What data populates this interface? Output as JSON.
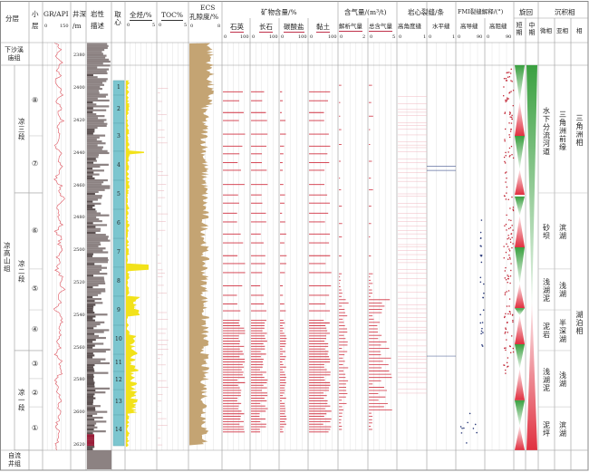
{
  "headers": {
    "fenceng": "分层",
    "xiaoceng": "小层",
    "gr": "GR/API",
    "gr_min": "0",
    "gr_max": "150",
    "depth": "井深",
    "depth_unit": "/m",
    "lith": "岩性",
    "lith2": "描述",
    "core": "取心",
    "tg": "全烃/%",
    "tg_min": "0",
    "tg_max": "5",
    "toc": "TOC%",
    "toc_min": "0",
    "toc_max": "5",
    "ecs": "ECS",
    "ecs2": "孔隙度/%",
    "ecs_min": "0",
    "ecs_max": "8",
    "mineral": "矿物含量/%",
    "quartz": "石英",
    "feldspar": "长石",
    "carbonate": "碳酸盐",
    "clay": "黏土",
    "m_min": "0",
    "m_max": "100",
    "gas": "含气量/(m³/t)",
    "desorbed": "解析气量",
    "desorbed_min": "0",
    "desorbed_max": "2",
    "total_gas": "总含气量",
    "total_min": "0",
    "total_max": "5",
    "core_frac": "岩心裂缝/条",
    "high_angle": "高角度缝",
    "ha_min": "0",
    "ha_max": "1",
    "horizontal": "水平缝",
    "hz_min": "0",
    "hz_max": "1",
    "fmi": "FMI裂缝解释/(°)",
    "conductive": "高导缝",
    "cd_min": "0",
    "cd_max": "90",
    "resistive": "高阻缝",
    "rs_min": "0",
    "rs_max": "90",
    "cycle": "旋回",
    "short": "短期",
    "medium": "中期",
    "facies": "沉积相",
    "microfacies": "微相",
    "subfacies": "亚相",
    "facies_col": "相"
  },
  "strat": {
    "formations": [
      {
        "name": "下沙溪庙组",
        "top": 2372.2,
        "bottom": 2385.6
      },
      {
        "name": "凉高山组",
        "top": 2385.6,
        "bottom": 2623
      },
      {
        "name": "自流井组",
        "top": 2623,
        "bottom": 2634.7
      }
    ],
    "members": [
      {
        "name": "凉三段",
        "top": 2385.6,
        "bottom": 2464.4
      },
      {
        "name": "凉二段",
        "top": 2464.4,
        "bottom": 2561.6
      },
      {
        "name": "凉一段",
        "top": 2561.6,
        "bottom": 2623
      }
    ],
    "layers": [
      {
        "name": "⑧",
        "top": 2385.6,
        "bottom": 2429.2
      },
      {
        "name": "⑦",
        "top": 2429.2,
        "bottom": 2464.4
      },
      {
        "name": "⑥",
        "top": 2464.4,
        "bottom": 2511.3
      },
      {
        "name": "⑤",
        "top": 2511.3,
        "bottom": 2536.5
      },
      {
        "name": "④",
        "top": 2536.5,
        "bottom": 2561.6
      },
      {
        "name": "③",
        "top": 2561.6,
        "bottom": 2578.9
      },
      {
        "name": "②",
        "top": 2578.9,
        "bottom": 2596.3
      },
      {
        "name": "①",
        "top": 2596.3,
        "bottom": 2623
      }
    ]
  },
  "depth_ticks": [
    "2380",
    "2400",
    "2420",
    "2440",
    "2460",
    "2480",
    "2500",
    "2520",
    "2540",
    "2560",
    "2580",
    "2600",
    "2620"
  ],
  "core_sections": [
    {
      "label": "1",
      "top": 2395.1,
      "bottom": 2404.1
    },
    {
      "label": "2",
      "top": 2404.1,
      "bottom": 2421.4
    },
    {
      "label": "3",
      "top": 2421.4,
      "bottom": 2438.7
    },
    {
      "label": "4",
      "top": 2438.7,
      "bottom": 2456.6
    },
    {
      "label": "5",
      "top": 2456.6,
      "bottom": 2474.5
    },
    {
      "label": "6",
      "top": 2474.5,
      "bottom": 2492.4
    },
    {
      "label": "7",
      "top": 2492.4,
      "bottom": 2510.2
    },
    {
      "label": "8",
      "top": 2510.2,
      "bottom": 2528.1
    },
    {
      "label": "9",
      "top": 2528.1,
      "bottom": 2546.0
    },
    {
      "label": "10",
      "top": 2546.0,
      "bottom": 2563.9
    },
    {
      "label": "11",
      "top": 2563.9,
      "bottom": 2574.5
    },
    {
      "label": "12",
      "top": 2574.5,
      "bottom": 2585.7
    },
    {
      "label": "13",
      "top": 2585.7,
      "bottom": 2601.3
    },
    {
      "label": "14",
      "top": 2601.3,
      "bottom": 2620.3
    }
  ],
  "facies": {
    "micro": [
      {
        "name": "水下分流河道",
        "top": 2385.6,
        "bottom": 2464.4
      },
      {
        "name": "砂坝",
        "top": 2464.4,
        "bottom": 2511.3
      },
      {
        "name": "浅湖泥",
        "top": 2511.3,
        "bottom": 2536.5
      },
      {
        "name": "泥岩",
        "top": 2536.5,
        "bottom": 2561.6
      },
      {
        "name": "浅湖泥",
        "top": 2561.6,
        "bottom": 2596.3
      },
      {
        "name": "泥坪",
        "top": 2596.3,
        "bottom": 2623
      }
    ],
    "sub": [
      {
        "name": "三角洲前缘",
        "top": 2385.6,
        "bottom": 2464.4
      },
      {
        "name": "滨湖",
        "top": 2464.4,
        "bottom": 2511.3
      },
      {
        "name": "浅湖",
        "top": 2511.3,
        "bottom": 2536.5
      },
      {
        "name": "半深湖",
        "top": 2536.5,
        "bottom": 2561.6
      },
      {
        "name": "浅湖",
        "top": 2561.6,
        "bottom": 2596.3
      },
      {
        "name": "滨湖",
        "top": 2596.3,
        "bottom": 2623
      }
    ],
    "main": [
      {
        "name": "三角洲相",
        "top": 2385.6,
        "bottom": 2464.4
      },
      {
        "name": "湖泊相",
        "top": 2464.4,
        "bottom": 2623
      }
    ]
  },
  "colors": {
    "gr": "#e05560",
    "core": "#7cc6cf",
    "tg": "#f2e21a",
    "ecs": "#c4a473",
    "mineral": "#d03040",
    "green": "#3aa040",
    "red": "#e03040",
    "fmi_cond": "#2a3a7a",
    "fmi_res": "#c02030",
    "lith_dark": "#5b5050",
    "lith_grey": "#8c8282",
    "lith_red": "#9a1f3a"
  },
  "chart_data": {
    "type": "well-log",
    "depth_range": [
      2372,
      2635
    ],
    "gr": {
      "depth_start": 2372,
      "step": 4,
      "xlim": [
        0,
        150
      ],
      "values": [
        70,
        95,
        62,
        100,
        75,
        90,
        58,
        88,
        102,
        70,
        96,
        80,
        105,
        72,
        92,
        85,
        60,
        98,
        76,
        104,
        82,
        66,
        95,
        88,
        110,
        74,
        92,
        80,
        100,
        68,
        96,
        84,
        106,
        78,
        90,
        70,
        100,
        86,
        112,
        76,
        94,
        62,
        88,
        104,
        80,
        98,
        72,
        92,
        66,
        100,
        84,
        95,
        58,
        90,
        78,
        102,
        74,
        96,
        82,
        68,
        92,
        78,
        70,
        86
      ]
    },
    "short_cycles": [
      {
        "base_up": 2385.6,
        "turn": 2408.0,
        "end": 2429.2
      },
      {
        "base_up": 2429.2,
        "turn": 2449.9,
        "end": 2465.5
      },
      {
        "base_up": 2466.6,
        "turn": 2478.4,
        "end": 2497.9
      },
      {
        "base_up": 2497.9,
        "turn": 2520.3,
        "end": 2535.4
      },
      {
        "base_up": 2535.4,
        "turn": 2539.8,
        "end": 2557.7
      },
      {
        "base_up": 2557.7,
        "turn": 2572.8,
        "end": 2592.3
      },
      {
        "base_up": 2592.3,
        "turn": 2608.0,
        "end": 2623.0
      }
    ],
    "medium_cycle": {
      "top": 2385.6,
      "turn": 2536.5,
      "end": 2623.0
    }
  }
}
